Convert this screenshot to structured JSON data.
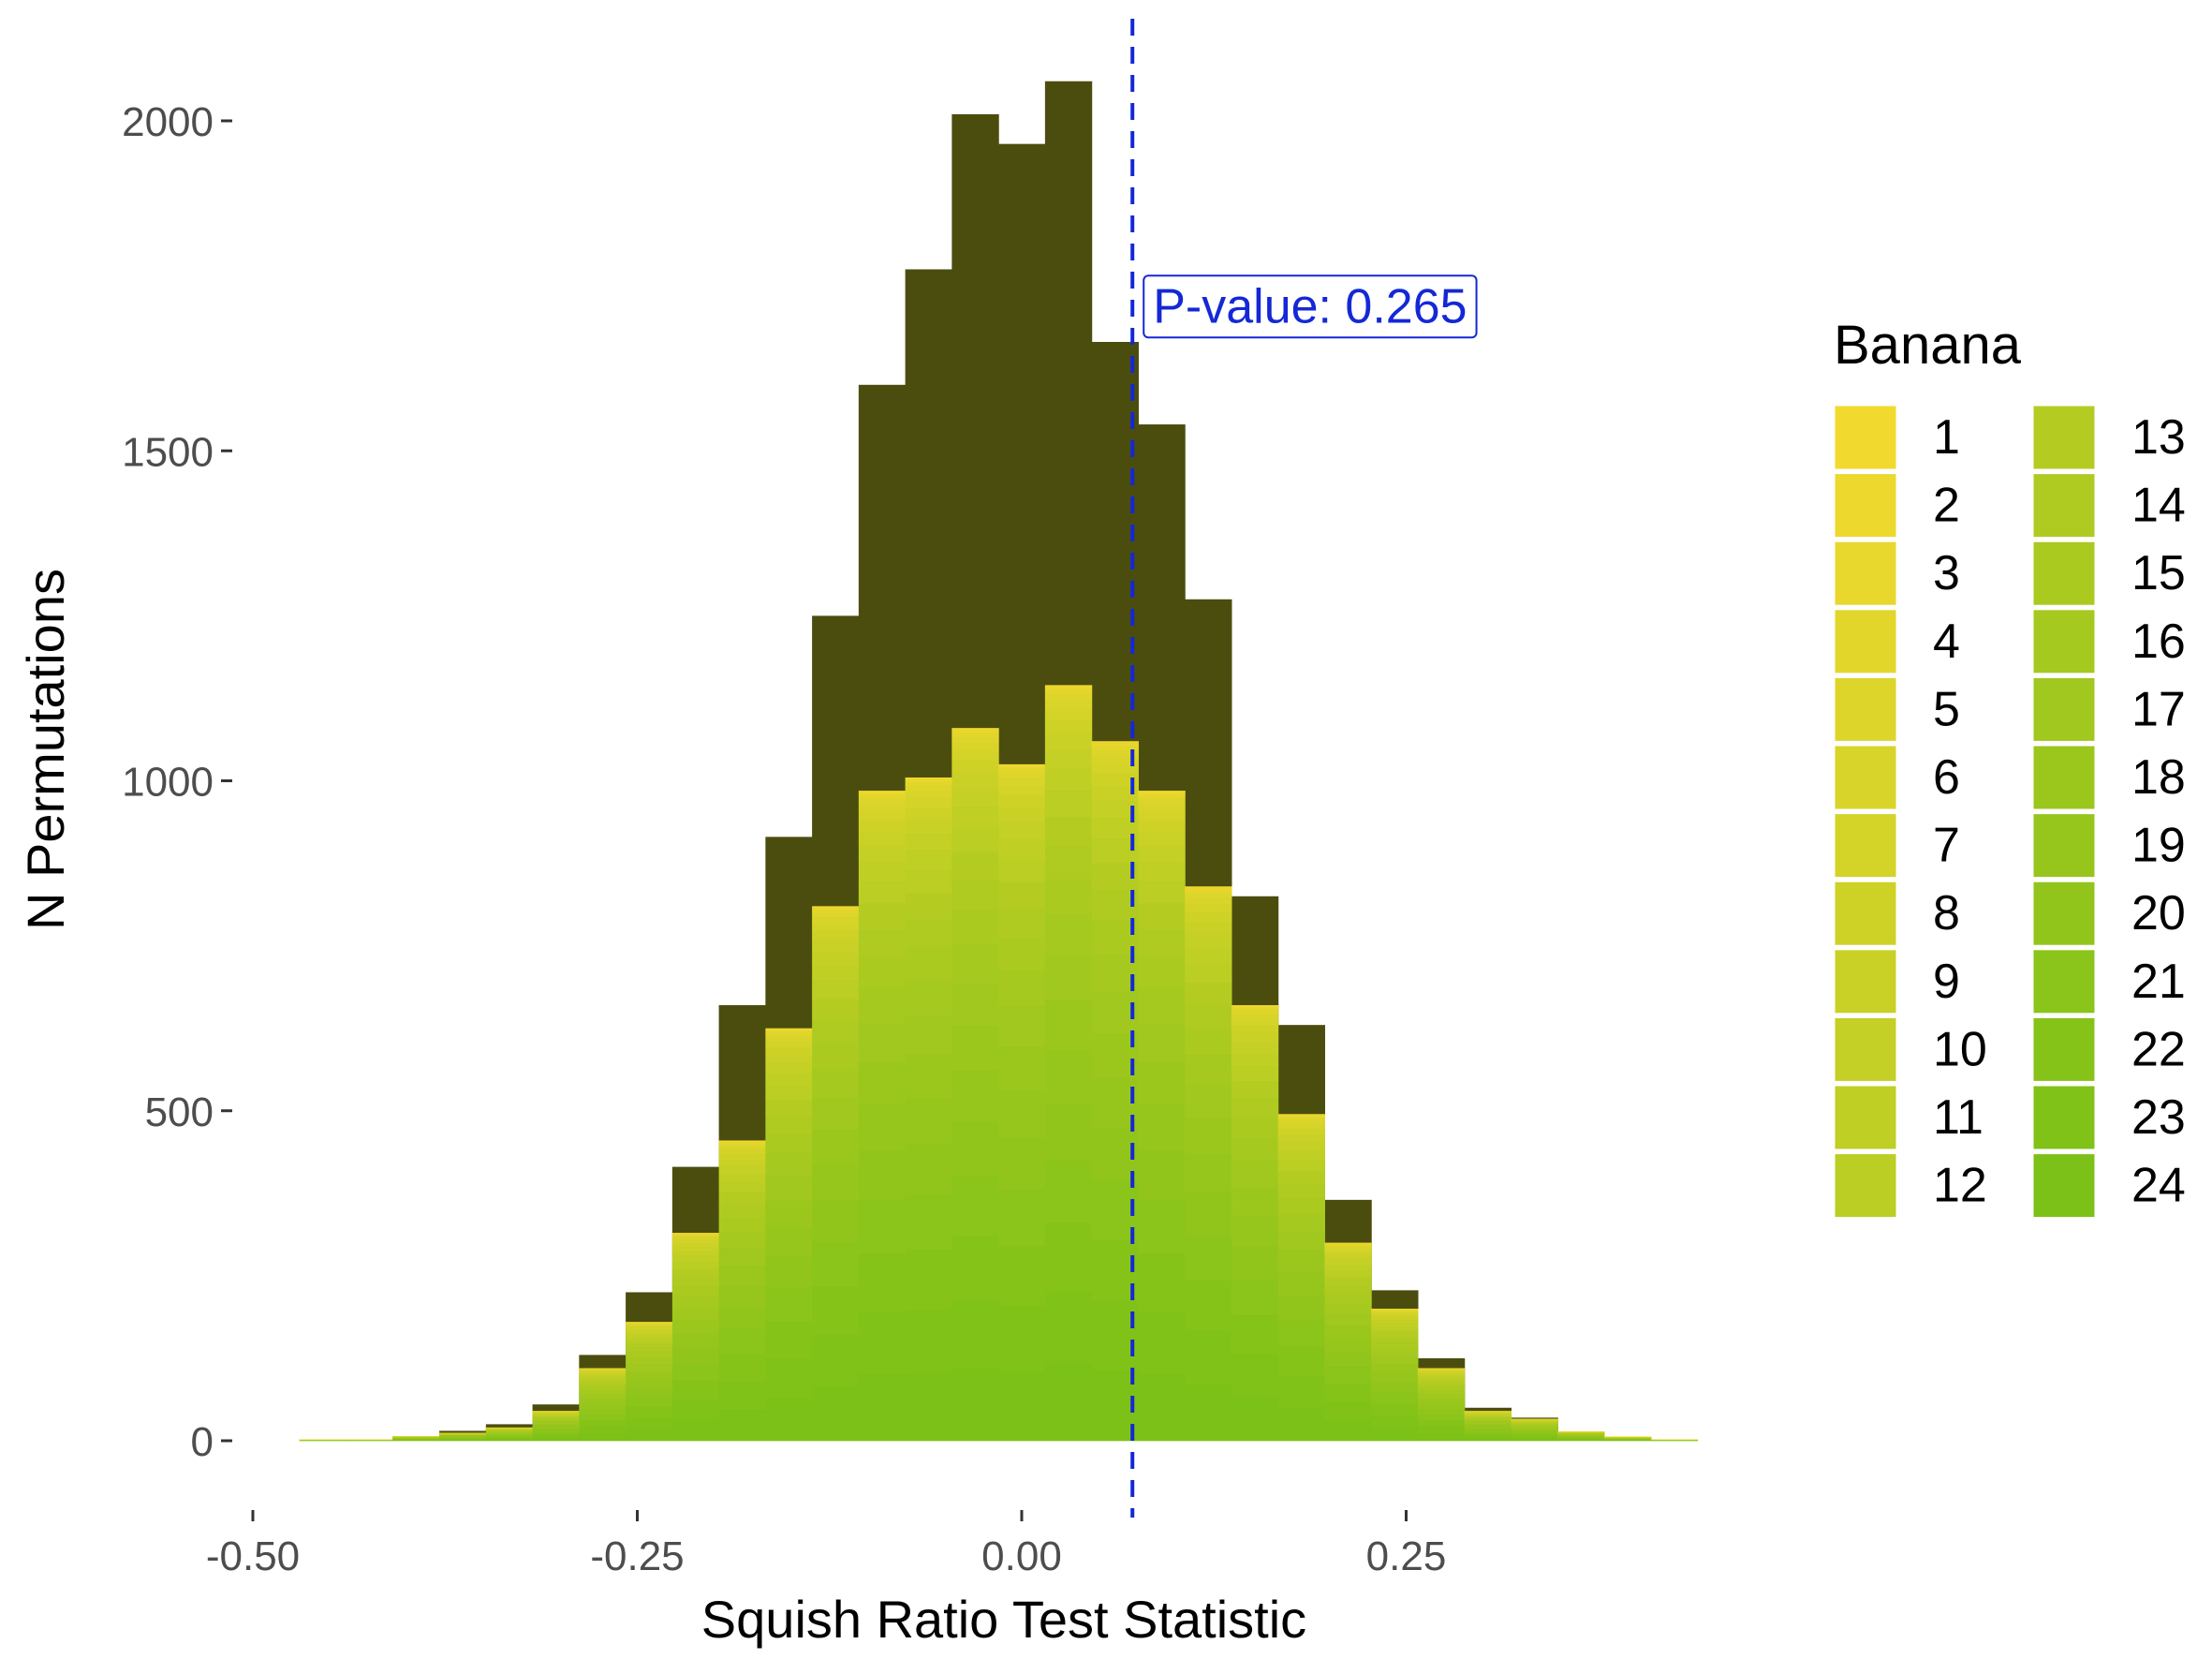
{
  "chart_data": {
    "type": "bar",
    "xlabel": "Squish Ratio Test Statistic",
    "ylabel": "N Permutations",
    "xlim": [
      -0.5,
      0.45
    ],
    "ylim": [
      -60,
      2150
    ],
    "x_ticks": [
      {
        "value": -0.5,
        "label": "-0.50"
      },
      {
        "value": -0.25,
        "label": "-0.25"
      },
      {
        "value": 0.0,
        "label": "0.00"
      },
      {
        "value": 0.25,
        "label": "0.25"
      }
    ],
    "y_ticks": [
      {
        "value": 0,
        "label": "0"
      },
      {
        "value": 500,
        "label": "500"
      },
      {
        "value": 1000,
        "label": "1000"
      },
      {
        "value": 1500,
        "label": "1500"
      },
      {
        "value": 2000,
        "label": "2000"
      }
    ],
    "bin_width": 0.0303,
    "bin_centers": [
      -0.4545,
      -0.4242,
      -0.3939,
      -0.3636,
      -0.3333,
      -0.303,
      -0.2727,
      -0.2424,
      -0.2121,
      -0.1818,
      -0.1515,
      -0.1212,
      -0.0909,
      -0.0606,
      -0.0303,
      0.0,
      0.0303,
      0.0606,
      0.0909,
      0.1212,
      0.1515,
      0.1818,
      0.2121,
      0.2424,
      0.2727,
      0.303,
      0.3333,
      0.3636,
      0.3939,
      0.4242
    ],
    "total_counts": [
      2,
      2,
      7,
      15,
      25,
      55,
      130,
      225,
      415,
      660,
      915,
      1250,
      1600,
      1775,
      2010,
      1965,
      2060,
      1665,
      1540,
      1275,
      825,
      630,
      365,
      228,
      125,
      50,
      35,
      14,
      6,
      2
    ],
    "banana_counts": [
      2,
      2,
      7,
      12,
      20,
      45,
      110,
      180,
      315,
      455,
      625,
      810,
      985,
      1005,
      1080,
      1025,
      1145,
      1060,
      985,
      840,
      660,
      495,
      300,
      200,
      110,
      45,
      33,
      14,
      6,
      2
    ],
    "total_color": "#4b4d0f",
    "banana_gradient": [
      "#f2d92e",
      "#7cc117"
    ],
    "vline": {
      "x": 0.072,
      "color": "#1428d6",
      "style": "dashed"
    },
    "annotation": {
      "text": "P-value: 0.265",
      "x": 0.072,
      "y": 1720,
      "color": "#1428d6"
    },
    "legend": {
      "title": "Banana",
      "position": "right",
      "columns": 2,
      "items": [
        "1",
        "2",
        "3",
        "4",
        "5",
        "6",
        "7",
        "8",
        "9",
        "10",
        "11",
        "12",
        "13",
        "14",
        "15",
        "16",
        "17",
        "18",
        "19",
        "20",
        "21",
        "22",
        "23",
        "24"
      ]
    },
    "grid": false
  }
}
